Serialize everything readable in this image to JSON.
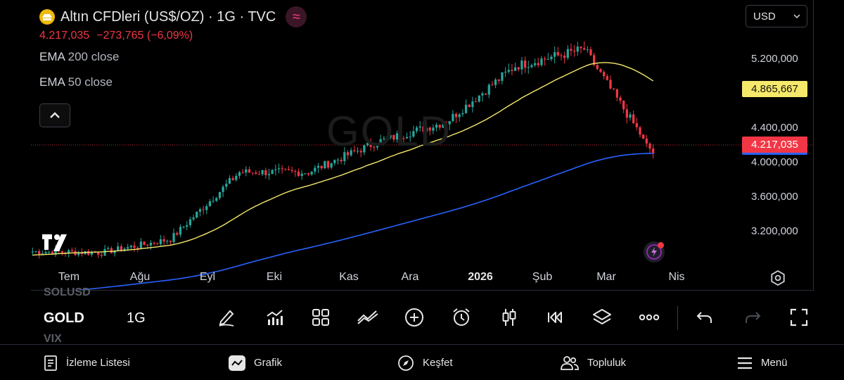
{
  "header": {
    "title": "Altın CFDleri (US$/OZ) · 1G · TVC",
    "last_price": "4.217,035",
    "change": "−273,765 (−6,09%)",
    "indicators": [
      {
        "name": "EMA",
        "params": "200 close"
      },
      {
        "name": "EMA",
        "params": "50 close"
      }
    ]
  },
  "currency": {
    "selected": "USD"
  },
  "watermark": "GOLD",
  "price_axis": {
    "labels": [
      "5.200,000",
      "4.400,000",
      "4.000,000",
      "3.600,000",
      "3.200,000"
    ],
    "ema50_tag": "4.865,667",
    "last_tag": "4.217,035"
  },
  "time_axis": {
    "labels": [
      "Tem",
      "Ağu",
      "Eyl",
      "Eki",
      "Kas",
      "Ara",
      "2026",
      "Şub",
      "Mar",
      "Nis"
    ]
  },
  "toolbar": {
    "symbols_ghost_above": "SOLUSD",
    "symbol": "GOLD",
    "symbols_ghost_below": "VIX",
    "interval": "1G",
    "tools": [
      "pen-icon",
      "indicators-icon",
      "layouts-icon",
      "compare-icon",
      "add-icon",
      "alert-icon",
      "chart-type-icon",
      "replay-icon",
      "layers-icon",
      "more-icon",
      "undo-icon",
      "redo-icon",
      "fullscreen-icon"
    ]
  },
  "bottom_nav": {
    "items": [
      {
        "label": "İzleme Listesi",
        "icon": "watchlist-icon"
      },
      {
        "label": "Grafik",
        "icon": "chart-icon"
      },
      {
        "label": "Keşfet",
        "icon": "compass-icon"
      },
      {
        "label": "Topluluk",
        "icon": "community-icon"
      },
      {
        "label": "Menü",
        "icon": "hamburger-icon"
      }
    ]
  },
  "colors": {
    "up": "#26a69a",
    "down": "#f23645",
    "ema50": "#f5e86a",
    "ema200": "#2962ff",
    "background": "#000000"
  },
  "chart_data": {
    "type": "candlestick",
    "symbol": "GOLD",
    "interval": "1G",
    "y_axis_ticks": [
      3200,
      3600,
      4000,
      4400,
      5200
    ],
    "ylim": [
      2990,
      5590
    ],
    "x_axis_ticks": [
      "Tem",
      "Ağu",
      "Eyl",
      "Eki",
      "Kas",
      "Ara",
      "2026",
      "Şub",
      "Mar",
      "Nis"
    ],
    "last_price": 4217.035,
    "change": -273.765,
    "change_pct": -6.09,
    "series": [
      {
        "name": "EMA 50 close",
        "last_value": 4865.667
      },
      {
        "name": "EMA 200 close",
        "last_value": 4217.035
      }
    ],
    "approx_close_path": [
      {
        "period": "Tem",
        "close": 3340
      },
      {
        "period": "Ağu",
        "close": 3330
      },
      {
        "period": "Eyl",
        "close": 3450
      },
      {
        "period": "Eki",
        "close": 4050
      },
      {
        "period": "Kas",
        "close": 4050
      },
      {
        "period": "Ara",
        "close": 4320
      },
      {
        "period": "2026",
        "close": 4500
      },
      {
        "period": "Şub",
        "close": 5000
      },
      {
        "period": "Mar",
        "close": 5150
      },
      {
        "period": "Mar end",
        "close": 4217
      }
    ]
  }
}
